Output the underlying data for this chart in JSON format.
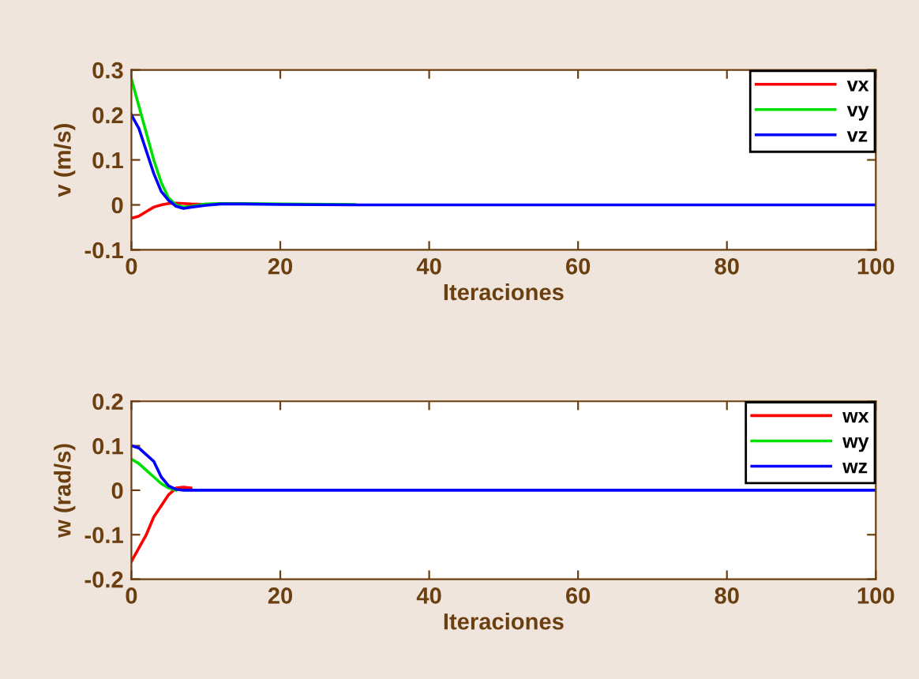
{
  "chart_data": [
    {
      "type": "line",
      "xlabel": "Iteraciones",
      "ylabel": "v (m/s)",
      "xlim": [
        0,
        100
      ],
      "xticks": [
        0,
        20,
        40,
        60,
        80,
        100
      ],
      "ylim": [
        -0.1,
        0.3
      ],
      "yticks": [
        -0.1,
        0,
        0.1,
        0.2,
        0.3
      ],
      "grid": false,
      "legend": "top right",
      "x": [
        0,
        1,
        2,
        3,
        4,
        5,
        6,
        7,
        8,
        10,
        12,
        15,
        20,
        30,
        40,
        50,
        60,
        70,
        80,
        90,
        100
      ],
      "series": [
        {
          "name": "vx",
          "color": "#ff0000",
          "x": [
            0,
            1,
            2,
            3,
            4,
            5,
            6,
            7,
            8,
            10
          ],
          "values": [
            -0.03,
            -0.025,
            -0.015,
            -0.005,
            0.0,
            0.003,
            0.004,
            0.003,
            0.002,
            0.001
          ]
        },
        {
          "name": "vy",
          "color": "#00e000",
          "x": [
            0,
            1,
            2,
            3,
            4,
            5,
            6,
            7,
            8,
            10,
            12,
            15,
            20,
            30
          ],
          "values": [
            0.28,
            0.22,
            0.16,
            0.1,
            0.05,
            0.015,
            0.0,
            -0.005,
            -0.003,
            0.002,
            0.003,
            0.003,
            0.002,
            0.001
          ]
        },
        {
          "name": "vz",
          "color": "#0000ff",
          "values": [
            0.2,
            0.17,
            0.12,
            0.07,
            0.03,
            0.01,
            -0.003,
            -0.008,
            -0.005,
            -0.001,
            0.002,
            0.002,
            0.001,
            0.0,
            0.0,
            0.0,
            0.0,
            0.0,
            0.0,
            0.0,
            0.0
          ]
        }
      ]
    },
    {
      "type": "line",
      "xlabel": "Iteraciones",
      "ylabel": "w (rad/s)",
      "xlim": [
        0,
        100
      ],
      "xticks": [
        0,
        20,
        40,
        60,
        80,
        100
      ],
      "ylim": [
        -0.2,
        0.2
      ],
      "yticks": [
        -0.2,
        -0.1,
        0,
        0.1,
        0.2
      ],
      "grid": false,
      "legend": "top right",
      "x": [
        0,
        1,
        2,
        3,
        4,
        5,
        6,
        7,
        8,
        10,
        12,
        15,
        20,
        30,
        40,
        50,
        60,
        70,
        80,
        90,
        100
      ],
      "series": [
        {
          "name": "wx",
          "color": "#ff0000",
          "x": [
            0,
            1,
            2,
            3,
            4,
            5,
            6,
            7,
            8
          ],
          "values": [
            -0.16,
            -0.13,
            -0.1,
            -0.06,
            -0.035,
            -0.01,
            0.005,
            0.007,
            0.005
          ]
        },
        {
          "name": "wy",
          "color": "#00e000",
          "x": [
            0,
            1,
            2,
            3,
            4,
            5,
            6
          ],
          "values": [
            0.07,
            0.06,
            0.045,
            0.03,
            0.015,
            0.005,
            0.0
          ]
        },
        {
          "name": "wz",
          "color": "#0000ff",
          "values": [
            0.1,
            0.095,
            0.08,
            0.065,
            0.03,
            0.01,
            0.002,
            0.0,
            0.0,
            0.0,
            0.0,
            0.0,
            0.0,
            0.0,
            0.0,
            0.0,
            0.0,
            0.0,
            0.0,
            0.0,
            0.0
          ]
        }
      ]
    }
  ]
}
